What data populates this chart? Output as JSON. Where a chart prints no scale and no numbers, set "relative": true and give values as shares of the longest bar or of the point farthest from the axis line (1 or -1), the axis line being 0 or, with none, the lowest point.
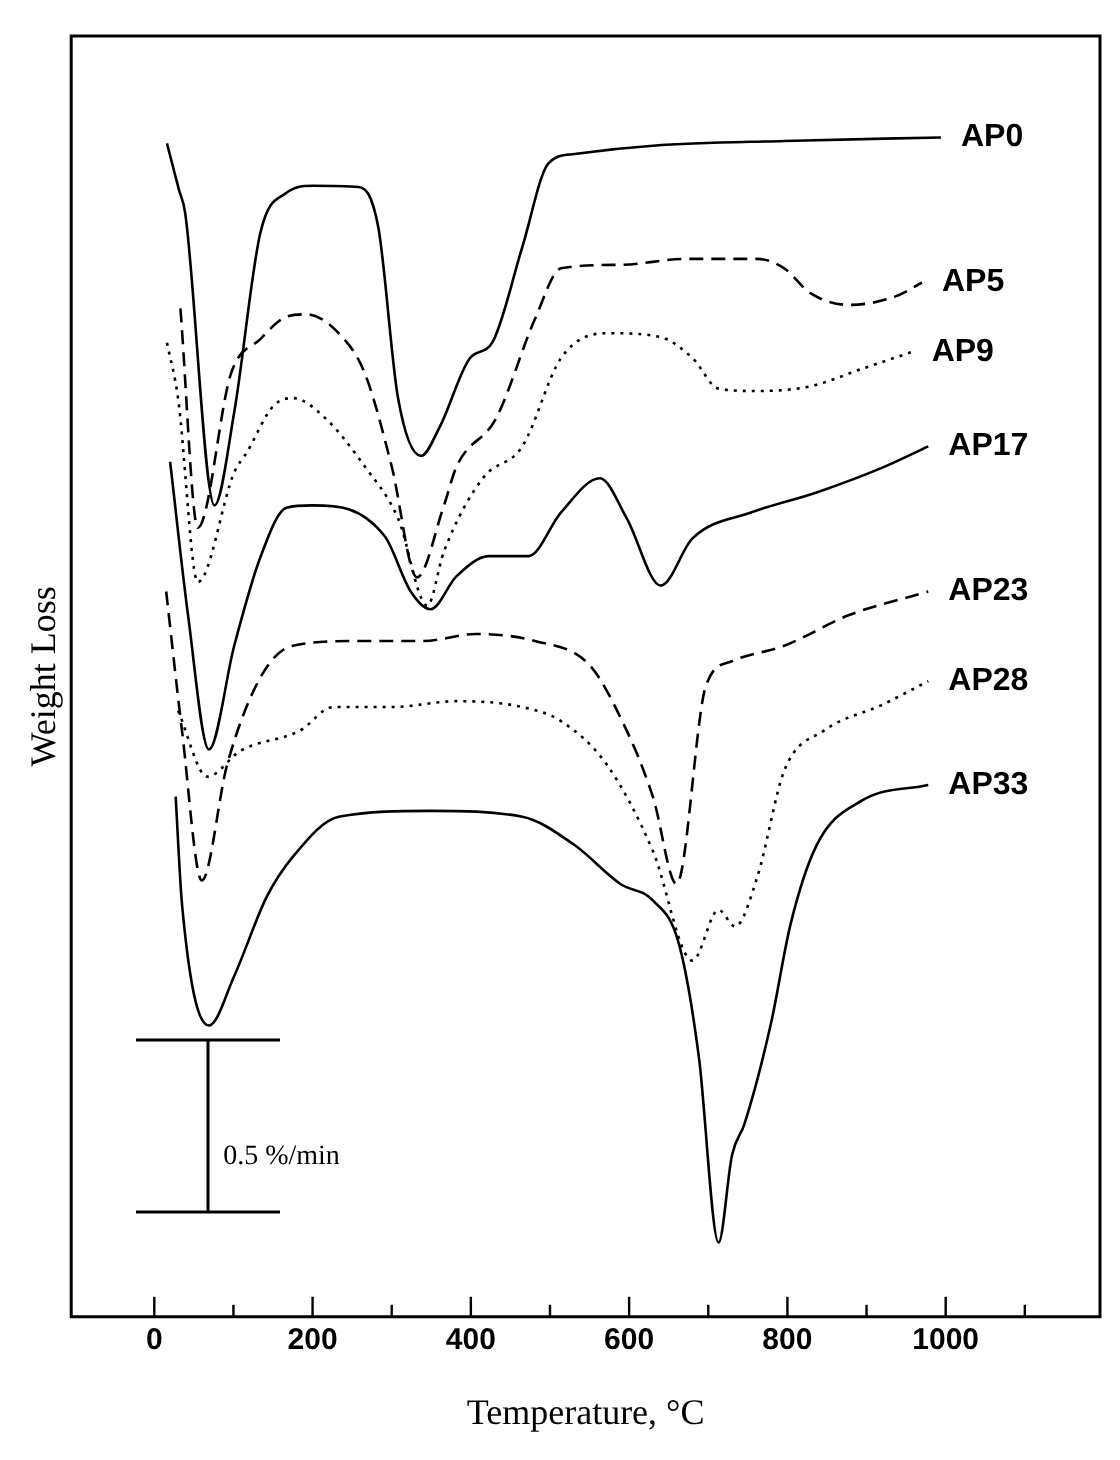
{
  "chart_data": {
    "type": "line",
    "xlabel": "Temperature, °C",
    "ylabel": "Weight Loss",
    "relative": true,
    "legend": false,
    "grid": false,
    "marker": "none",
    "tick_labels": "x",
    "xlim": [
      -105,
      1195
    ],
    "xticks": [
      0,
      {
        "value": 100,
        "label": null
      },
      200,
      {
        "value": 300,
        "label": null
      },
      400,
      {
        "value": 500,
        "label": null
      },
      600,
      {
        "value": 700,
        "label": null
      },
      800,
      {
        "value": 900,
        "label": null
      },
      1000,
      {
        "value": 1100,
        "label": null
      }
    ],
    "annotations": [
      "0.5 %/min"
    ],
    "series": [
      {
        "name": "AP0",
        "color": "#000000",
        "line_style": "solid",
        "x": [
          16,
          31,
          39,
          76,
          101,
          134,
          167,
          200,
          258,
          283,
          308,
          337,
          361,
          399,
          427,
          465,
          498,
          531,
          630,
          796,
          994
        ],
        "values": [
          0.995,
          0.956,
          0.936,
          0.688,
          0.767,
          0.919,
          0.953,
          0.959,
          0.958,
          0.924,
          0.779,
          0.73,
          0.755,
          0.813,
          0.826,
          0.907,
          0.978,
          0.986,
          0.993,
          0.997,
          1
        ]
      },
      {
        "name": "AP5",
        "color": "#000000",
        "line_style": "dashed",
        "x": [
          33,
          55,
          97,
          134,
          167,
          192,
          233,
          266,
          300,
          332,
          366,
          382,
          432,
          481,
          514,
          589,
          672,
          762,
          796,
          829,
          878,
          936,
          970
        ],
        "values": [
          0.855,
          0.669,
          0.8,
          0.829,
          0.848,
          0.85,
          0.834,
          0.8,
          0.721,
          0.627,
          0.688,
          0.721,
          0.762,
          0.846,
          0.889,
          0.892,
          0.897,
          0.897,
          0.889,
          0.868,
          0.858,
          0.865,
          0.877
        ]
      },
      {
        "name": "AP9",
        "color": "#000000",
        "line_style": "dotted",
        "x": [
          16,
          30,
          55,
          101,
          117,
          150,
          175,
          216,
          266,
          308,
          345,
          366,
          415,
          465,
          514,
          572,
          638,
          680,
          713,
          762,
          829,
          895,
          957
        ],
        "values": [
          0.826,
          0.779,
          0.623,
          0.716,
          0.733,
          0.772,
          0.779,
          0.762,
          0.721,
          0.677,
          0.603,
          0.649,
          0.711,
          0.738,
          0.813,
          0.834,
          0.831,
          0.813,
          0.787,
          0.785,
          0.789,
          0.804,
          0.818
        ]
      },
      {
        "name": "AP17",
        "color": "#000000",
        "line_style": "solid",
        "x": [
          20,
          43,
          69,
          101,
          134,
          167,
          200,
          291,
          324,
          349,
          382,
          423,
          473,
          514,
          563,
          597,
          640,
          680,
          754,
          837,
          920,
          978
        ],
        "values": [
          0.725,
          0.593,
          0.481,
          0.569,
          0.644,
          0.686,
          0.688,
          0.662,
          0.615,
          0.6,
          0.628,
          0.645,
          0.645,
          0.682,
          0.711,
          0.677,
          0.62,
          0.66,
          0.682,
          0.699,
          0.72,
          0.738
        ]
      },
      {
        "name": "AP23",
        "color": "#000000",
        "line_style": "dashed",
        "x": [
          15,
          35,
          60,
          92,
          134,
          175,
          258,
          340,
          407,
          481,
          548,
          581,
          630,
          660,
          697,
          730,
          796,
          878,
          978
        ],
        "values": [
          0.615,
          0.497,
          0.37,
          0.468,
          0.542,
          0.569,
          0.573,
          0.573,
          0.579,
          0.573,
          0.554,
          0.519,
          0.441,
          0.367,
          0.535,
          0.556,
          0.569,
          0.595,
          0.615
        ]
      },
      {
        "name": "AP28",
        "color": "#000000",
        "line_style": "dotted",
        "x": [
          30,
          67,
          109,
          184,
          226,
          300,
          382,
          465,
          514,
          572,
          630,
          680,
          713,
          734,
          762,
          796,
          846,
          920,
          978
        ],
        "values": [
          0.514,
          0.458,
          0.48,
          0.497,
          0.517,
          0.517,
          0.522,
          0.517,
          0.505,
          0.468,
          0.395,
          0.302,
          0.345,
          0.331,
          0.373,
          0.463,
          0.497,
          0.519,
          0.539
        ]
      },
      {
        "name": "AP33",
        "color": "#000000",
        "line_style": "solid",
        "x": [
          27,
          35,
          69,
          101,
          142,
          175,
          233,
          349,
          465,
          531,
          589,
          630,
          663,
          688,
          713,
          730,
          746,
          779,
          804,
          837,
          895,
          978
        ],
        "values": [
          0.441,
          0.35,
          0.247,
          0.289,
          0.356,
          0.39,
          0.424,
          0.429,
          0.424,
          0.4,
          0.367,
          0.353,
          0.316,
          0.221,
          0.063,
          0.137,
          0.164,
          0.248,
          0.333,
          0.4,
          0.438,
          0.451
        ]
      }
    ]
  }
}
